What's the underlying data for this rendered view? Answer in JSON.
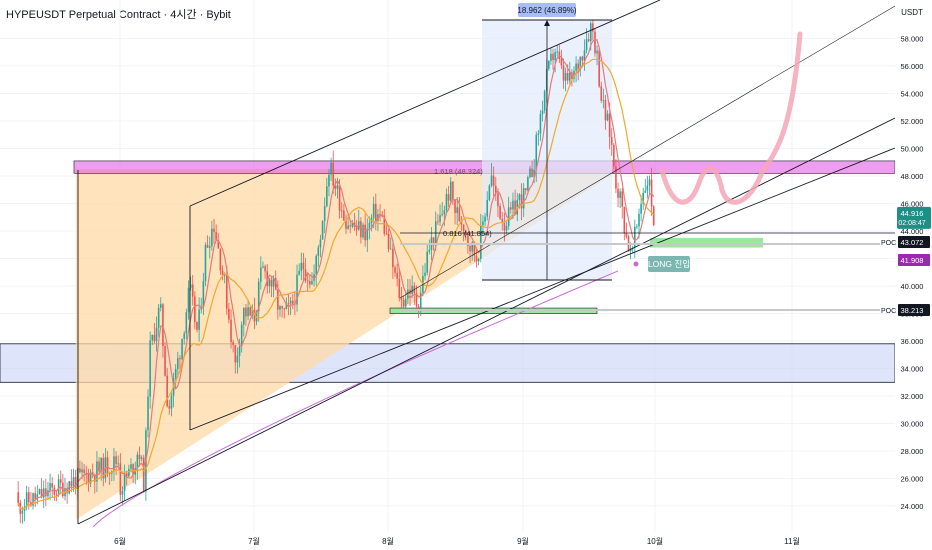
{
  "header": {
    "title": "HYPEUSDT Perpetual Contract · 4시간 · Bybit"
  },
  "chart_data": {
    "type": "candlestick",
    "ylabel": "USDT",
    "ylim": [
      22.5,
      60.5
    ],
    "y_ticks": [
      24,
      26,
      28,
      30,
      32,
      34,
      36,
      38,
      40,
      42,
      44,
      46,
      48,
      50,
      52,
      54,
      56,
      58
    ],
    "x_ticks": [
      "6월",
      "7월",
      "8월",
      "9월",
      "10월",
      "11월"
    ],
    "grid": true,
    "price_path": [
      [
        0.0,
        25.3
      ],
      [
        0.11,
        27.1
      ],
      [
        0.14,
        28.3
      ],
      [
        0.18,
        25.6
      ],
      [
        0.22,
        35.2
      ],
      [
        0.3,
        38.5
      ],
      [
        0.36,
        30.9
      ],
      [
        0.45,
        35.5
      ],
      [
        0.52,
        39.8
      ],
      [
        0.58,
        36.4
      ],
      [
        0.64,
        42.8
      ],
      [
        0.7,
        44.6
      ],
      [
        0.78,
        40.2
      ],
      [
        0.86,
        34.2
      ],
      [
        0.92,
        38.2
      ],
      [
        1.0,
        37.6
      ],
      [
        1.06,
        41.2
      ],
      [
        1.14,
        40.1
      ],
      [
        1.2,
        37.8
      ],
      [
        1.28,
        38.4
      ],
      [
        1.36,
        41.6
      ],
      [
        1.44,
        40.2
      ],
      [
        1.5,
        44.1
      ],
      [
        1.56,
        48.8
      ],
      [
        1.62,
        46.9
      ],
      [
        1.68,
        44.9
      ],
      [
        1.76,
        44.2
      ],
      [
        1.84,
        43.9
      ],
      [
        1.9,
        45.4
      ],
      [
        1.96,
        44.8
      ],
      [
        2.04,
        41.2
      ],
      [
        2.1,
        38.8
      ],
      [
        2.16,
        39.9
      ],
      [
        2.22,
        38.6
      ],
      [
        2.3,
        42.6
      ],
      [
        2.38,
        44.7
      ],
      [
        2.46,
        47.1
      ],
      [
        2.5,
        45.4
      ],
      [
        2.56,
        44.6
      ],
      [
        2.6,
        43.1
      ],
      [
        2.66,
        42.1
      ],
      [
        2.72,
        45.6
      ],
      [
        2.76,
        48.2
      ],
      [
        2.8,
        46.2
      ],
      [
        2.86,
        44.6
      ],
      [
        2.92,
        45.3
      ],
      [
        2.96,
        46.2
      ],
      [
        3.02,
        46.6
      ],
      [
        3.08,
        48.9
      ],
      [
        3.12,
        51.6
      ],
      [
        3.18,
        55.1
      ],
      [
        3.24,
        57.3
      ],
      [
        3.3,
        55.2
      ],
      [
        3.36,
        54.8
      ],
      [
        3.42,
        56.2
      ],
      [
        3.48,
        58.1
      ],
      [
        3.52,
        59.1
      ],
      [
        3.56,
        56.8
      ],
      [
        3.6,
        53.2
      ],
      [
        3.66,
        51.1
      ],
      [
        3.7,
        47.9
      ],
      [
        3.74,
        46.2
      ],
      [
        3.78,
        43.8
      ],
      [
        3.82,
        42.1
      ],
      [
        3.86,
        44.2
      ],
      [
        3.9,
        46.7
      ],
      [
        3.95,
        47.9
      ],
      [
        3.99,
        44.9
      ]
    ],
    "current_price": "44.916",
    "current_price_countdown": "02:08:47",
    "price_labels": [
      {
        "label": "POC",
        "value": 43.072
      },
      {
        "label": "",
        "value": 41.908
      },
      {
        "label": "POC",
        "value": 38.213
      }
    ],
    "annotations": {
      "range_measure": "18.962 (46.89%)",
      "fib_1618": "1.618 (48.324)",
      "fib_0816": "0.816 (41.854)",
      "long_entry": "LONG 진입",
      "poc": "POC"
    },
    "colors": {
      "up": "#26a69a",
      "down": "#ef5350",
      "ma_fast": "#e87a7a",
      "ma_mid": "#f0a830",
      "ma_slow": "#c86ad6",
      "resistance_zone": "#e04ee0",
      "support_zone": "#c8d4f8",
      "triangle_fill": "#ffd9a6",
      "poc_zone": "#8fe68f",
      "projection": "#f4a6b6",
      "current_price_bg": "#1e8e86",
      "measure_bg": "#a7bdf5",
      "long_bg": "#7cb6b0"
    }
  }
}
